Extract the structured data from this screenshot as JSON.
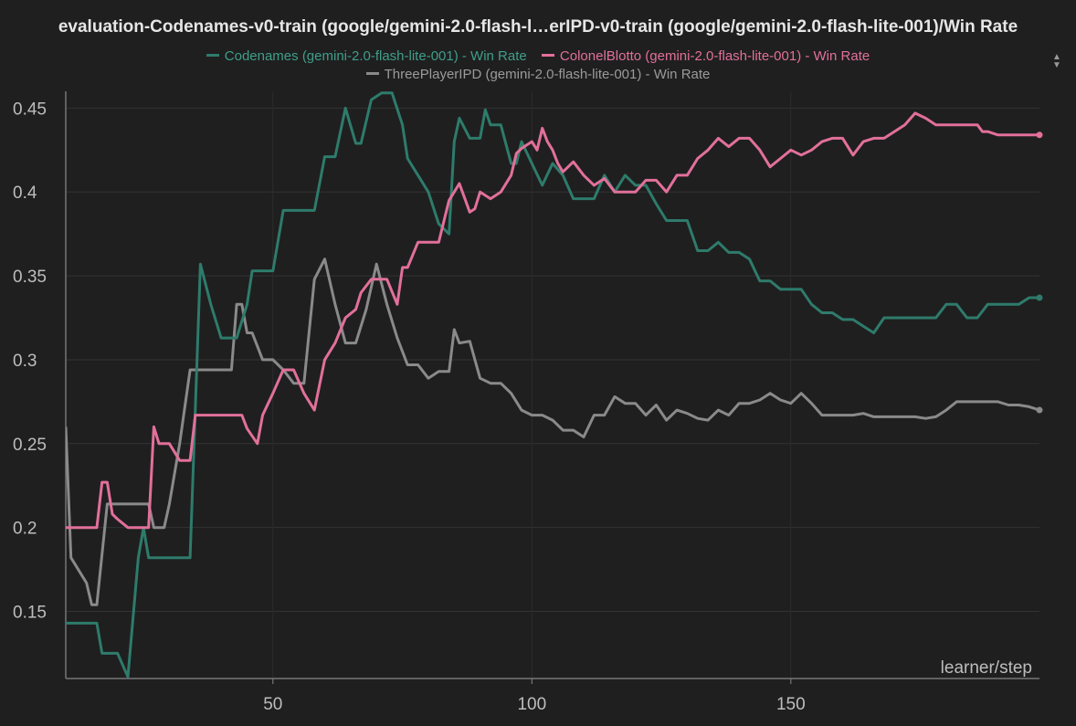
{
  "chart_data": {
    "type": "line",
    "title": "evaluation-Codenames-v0-train (google/gemini-2.0-flash-l…erIPD-v0-train (google/gemini-2.0-flash-lite-001)/Win Rate",
    "xlabel": "learner/step",
    "ylabel": "",
    "xlim": [
      10,
      198
    ],
    "ylim": [
      0.11,
      0.46
    ],
    "xticks": [
      50,
      100,
      150
    ],
    "yticks": [
      0.15,
      0.2,
      0.25,
      0.3,
      0.35,
      0.4,
      0.45
    ],
    "xtick_labels": [
      "50",
      "100",
      "150"
    ],
    "ytick_labels": [
      "0.15",
      "0.2",
      "0.25",
      "0.3",
      "0.35",
      "0.4",
      "0.45"
    ],
    "grid": true,
    "legend_position": "top",
    "series": [
      {
        "name": "Codenames (gemini-2.0-flash-lite-001) - Win Rate",
        "color": "#2e7b6b",
        "x": [
          10,
          16,
          17,
          20,
          22,
          24,
          25,
          26,
          30,
          34,
          36,
          38,
          40,
          43,
          45,
          46,
          47,
          50,
          52,
          54,
          56,
          58,
          60,
          62,
          64,
          66,
          67,
          69,
          71,
          73,
          75,
          76,
          78,
          80,
          82,
          84,
          85,
          86,
          88,
          90,
          91,
          92,
          94,
          96,
          97,
          98,
          100,
          102,
          104,
          106,
          108,
          110,
          112,
          114,
          116,
          118,
          120,
          122,
          124,
          126,
          128,
          130,
          132,
          134,
          136,
          138,
          140,
          142,
          144,
          146,
          148,
          150,
          152,
          154,
          156,
          158,
          160,
          162,
          164,
          166,
          168,
          170,
          172,
          174,
          176,
          178,
          180,
          182,
          184,
          186,
          188,
          190,
          192,
          194,
          196,
          198
        ],
        "y": [
          0.143,
          0.143,
          0.125,
          0.125,
          0.111,
          0.182,
          0.2,
          0.182,
          0.182,
          0.182,
          0.357,
          0.333,
          0.313,
          0.313,
          0.333,
          0.353,
          0.353,
          0.353,
          0.389,
          0.389,
          0.389,
          0.389,
          0.421,
          0.421,
          0.45,
          0.429,
          0.429,
          0.455,
          0.459,
          0.459,
          0.44,
          0.42,
          0.41,
          0.4,
          0.381,
          0.375,
          0.43,
          0.444,
          0.432,
          0.432,
          0.449,
          0.44,
          0.44,
          0.417,
          0.417,
          0.43,
          0.417,
          0.404,
          0.417,
          0.41,
          0.396,
          0.396,
          0.396,
          0.41,
          0.4,
          0.41,
          0.404,
          0.404,
          0.393,
          0.383,
          0.383,
          0.383,
          0.365,
          0.365,
          0.37,
          0.364,
          0.364,
          0.36,
          0.347,
          0.347,
          0.342,
          0.342,
          0.342,
          0.333,
          0.328,
          0.328,
          0.324,
          0.324,
          0.32,
          0.316,
          0.325,
          0.325,
          0.325,
          0.325,
          0.325,
          0.325,
          0.333,
          0.333,
          0.325,
          0.325,
          0.333,
          0.333,
          0.333,
          0.333,
          0.337,
          0.337
        ]
      },
      {
        "name": "ColonelBlotto (gemini-2.0-flash-lite-001) - Win Rate",
        "color": "#e2709a",
        "x": [
          10,
          12,
          16,
          17,
          18,
          19,
          20,
          22,
          24,
          26,
          27,
          28,
          30,
          32,
          34,
          35,
          36,
          38,
          40,
          42,
          44,
          45,
          47,
          48,
          50,
          52,
          54,
          56,
          58,
          60,
          62,
          64,
          66,
          67,
          69,
          70,
          72,
          74,
          75,
          76,
          78,
          80,
          82,
          84,
          85,
          86,
          88,
          89,
          90,
          92,
          94,
          96,
          97,
          98,
          100,
          101,
          102,
          103,
          104,
          105,
          106,
          107,
          108,
          110,
          112,
          114,
          116,
          118,
          120,
          122,
          124,
          126,
          128,
          130,
          132,
          134,
          136,
          138,
          140,
          142,
          144,
          146,
          148,
          150,
          152,
          154,
          156,
          158,
          160,
          162,
          164,
          166,
          168,
          170,
          172,
          174,
          176,
          178,
          180,
          182,
          184,
          186,
          187,
          188,
          190,
          192,
          194,
          196,
          198
        ],
        "y": [
          0.2,
          0.2,
          0.2,
          0.227,
          0.227,
          0.208,
          0.205,
          0.2,
          0.2,
          0.2,
          0.26,
          0.25,
          0.25,
          0.24,
          0.24,
          0.267,
          0.267,
          0.267,
          0.267,
          0.267,
          0.267,
          0.259,
          0.25,
          0.267,
          0.28,
          0.294,
          0.294,
          0.28,
          0.27,
          0.3,
          0.31,
          0.325,
          0.33,
          0.34,
          0.348,
          0.348,
          0.348,
          0.333,
          0.355,
          0.355,
          0.37,
          0.37,
          0.37,
          0.395,
          0.4,
          0.405,
          0.388,
          0.39,
          0.4,
          0.396,
          0.4,
          0.41,
          0.423,
          0.426,
          0.43,
          0.425,
          0.438,
          0.43,
          0.425,
          0.417,
          0.412,
          0.415,
          0.418,
          0.41,
          0.404,
          0.408,
          0.4,
          0.4,
          0.4,
          0.407,
          0.407,
          0.4,
          0.41,
          0.41,
          0.42,
          0.425,
          0.432,
          0.427,
          0.432,
          0.432,
          0.425,
          0.415,
          0.42,
          0.425,
          0.422,
          0.425,
          0.43,
          0.432,
          0.432,
          0.422,
          0.43,
          0.432,
          0.432,
          0.436,
          0.44,
          0.447,
          0.444,
          0.44,
          0.44,
          0.44,
          0.44,
          0.44,
          0.436,
          0.436,
          0.434,
          0.434,
          0.434,
          0.434,
          0.434
        ],
        "y_override": null
      },
      {
        "name": "ThreePlayerIPD (gemini-2.0-flash-lite-001) - Win Rate",
        "color": "#8a8a8a",
        "x": [
          10,
          11,
          14,
          15,
          16,
          18,
          20,
          22,
          24,
          26,
          27,
          29,
          30,
          32,
          34,
          36,
          38,
          40,
          42,
          43,
          44,
          45,
          46,
          48,
          50,
          52,
          54,
          56,
          58,
          60,
          62,
          64,
          66,
          68,
          70,
          72,
          74,
          76,
          78,
          80,
          82,
          84,
          85,
          86,
          88,
          89,
          90,
          92,
          94,
          96,
          98,
          100,
          102,
          104,
          106,
          108,
          110,
          112,
          114,
          116,
          118,
          120,
          122,
          124,
          126,
          128,
          130,
          132,
          134,
          136,
          138,
          140,
          142,
          144,
          146,
          148,
          150,
          152,
          154,
          156,
          158,
          160,
          162,
          164,
          166,
          168,
          170,
          172,
          174,
          176,
          178,
          180,
          182,
          184,
          186,
          188,
          190,
          192,
          194,
          196,
          198
        ],
        "y": [
          0.26,
          0.182,
          0.167,
          0.154,
          0.154,
          0.214,
          0.214,
          0.214,
          0.214,
          0.214,
          0.2,
          0.2,
          0.214,
          0.25,
          0.294,
          0.294,
          0.294,
          0.294,
          0.294,
          0.333,
          0.333,
          0.316,
          0.316,
          0.3,
          0.3,
          0.294,
          0.286,
          0.286,
          0.348,
          0.36,
          0.333,
          0.31,
          0.31,
          0.33,
          0.357,
          0.333,
          0.313,
          0.297,
          0.297,
          0.289,
          0.293,
          0.293,
          0.318,
          0.31,
          0.311,
          0.3,
          0.289,
          0.286,
          0.286,
          0.28,
          0.27,
          0.267,
          0.267,
          0.264,
          0.258,
          0.258,
          0.254,
          0.267,
          0.267,
          0.278,
          0.274,
          0.274,
          0.267,
          0.273,
          0.264,
          0.27,
          0.268,
          0.265,
          0.264,
          0.27,
          0.267,
          0.274,
          0.274,
          0.276,
          0.28,
          0.276,
          0.274,
          0.28,
          0.274,
          0.267,
          0.267,
          0.267,
          0.267,
          0.268,
          0.266,
          0.266,
          0.266,
          0.266,
          0.266,
          0.265,
          0.266,
          0.27,
          0.275,
          0.275,
          0.275,
          0.275,
          0.275,
          0.273,
          0.273,
          0.272,
          0.27
        ]
      }
    ]
  }
}
